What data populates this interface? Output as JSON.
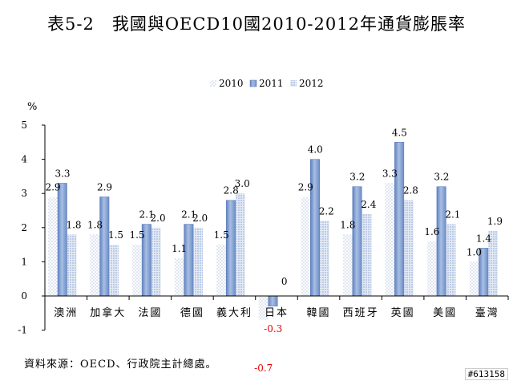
{
  "chart_data": {
    "type": "bar",
    "title": "表5-2　我國與OECD10國2010-2012年通貨膨脹率",
    "ylabel": "%",
    "xlabel": "",
    "ylim": [
      -1,
      5
    ],
    "yticks": [
      "-1",
      "0",
      "1",
      "2",
      "3",
      "4",
      "5"
    ],
    "grid": false,
    "legend_position": "top-center",
    "categories": [
      "澳洲",
      "加拿大",
      "法國",
      "德國",
      "義大利",
      "日本",
      "韓國",
      "西班牙",
      "英國",
      "美國",
      "臺灣"
    ],
    "series": [
      {
        "name": "2010",
        "values": [
          2.9,
          1.8,
          1.5,
          1.1,
          1.5,
          -0.7,
          2.9,
          1.8,
          3.3,
          1.6,
          1.0
        ],
        "labels": [
          "2.9",
          "1.8",
          "1.5",
          "1.1",
          "1.5",
          "-0.7",
          "2.9",
          "1.8",
          "3.3",
          "1.6",
          "1.0"
        ]
      },
      {
        "name": "2011",
        "values": [
          3.3,
          2.9,
          2.1,
          2.1,
          2.8,
          -0.3,
          4.0,
          3.2,
          4.5,
          3.2,
          1.4
        ],
        "labels": [
          "3.3",
          "2.9",
          "2.1",
          "2.1",
          "2.8",
          "-0.3",
          "4.0",
          "3.2",
          "4.5",
          "3.2",
          "1.4"
        ]
      },
      {
        "name": "2012",
        "values": [
          1.8,
          1.5,
          2.0,
          2.0,
          3.0,
          0,
          2.2,
          2.4,
          2.8,
          2.1,
          1.9
        ],
        "labels": [
          "1.8",
          "1.5",
          "2.0",
          "2.0",
          "3.0",
          "0",
          "2.2",
          "2.4",
          "2.8",
          "2.1",
          "1.9"
        ]
      }
    ],
    "colors": {
      "2010": "#c9d3e6",
      "2011": "#7f9ed0",
      "2012": "#c7d4ea",
      "negative_label": "#e60000"
    }
  },
  "source_note": "資料來源：OECD、行政院主計總處。",
  "tag": "#613158"
}
